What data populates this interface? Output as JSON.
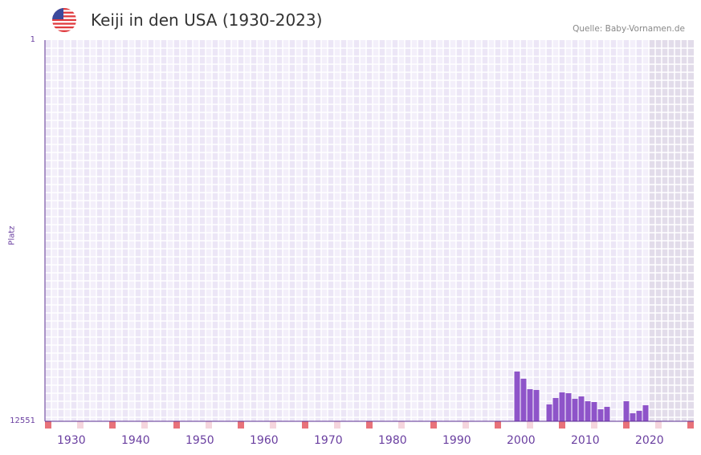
{
  "header": {
    "title": "Keiji in den USA (1930-2023)",
    "source": "Quelle: Baby-Vornamen.de",
    "flag_icon": "us-flag-icon"
  },
  "colors": {
    "bar": "#8e54c9",
    "axis": "#5a2d91",
    "marker_red": "#e8727a",
    "marker_pink": "#f5d5dd",
    "grid_bg": "#efe9f8",
    "future": "#e2dcea"
  },
  "chart_data": {
    "type": "bar",
    "title": "Keiji in den USA (1930-2023)",
    "ylabel": "Platz",
    "xlabel": "",
    "ylim": [
      1,
      12551
    ],
    "y_inverted": true,
    "y_ticks": [
      "1",
      "12551"
    ],
    "x_range": [
      1928,
      2028
    ],
    "x_ticks": [
      "1930",
      "1940",
      "1950",
      "1960",
      "1970",
      "1980",
      "1990",
      "2000",
      "2010",
      "2020"
    ],
    "future_from": 2022,
    "grid": true,
    "series": [
      {
        "name": "Platz",
        "points": [
          {
            "year": 2001,
            "rank": 10913
          },
          {
            "year": 2002,
            "rank": 11150
          },
          {
            "year": 2003,
            "rank": 11494
          },
          {
            "year": 2004,
            "rank": 11520
          },
          {
            "year": 2006,
            "rank": 11996
          },
          {
            "year": 2007,
            "rank": 11785
          },
          {
            "year": 2008,
            "rank": 11600
          },
          {
            "year": 2009,
            "rank": 11626
          },
          {
            "year": 2010,
            "rank": 11811
          },
          {
            "year": 2011,
            "rank": 11732
          },
          {
            "year": 2012,
            "rank": 11890
          },
          {
            "year": 2013,
            "rank": 11917
          },
          {
            "year": 2014,
            "rank": 12155
          },
          {
            "year": 2015,
            "rank": 12075
          },
          {
            "year": 2018,
            "rank": 11890
          },
          {
            "year": 2019,
            "rank": 12287
          },
          {
            "year": 2020,
            "rank": 12208
          },
          {
            "year": 2021,
            "rank": 12023
          }
        ]
      }
    ]
  }
}
